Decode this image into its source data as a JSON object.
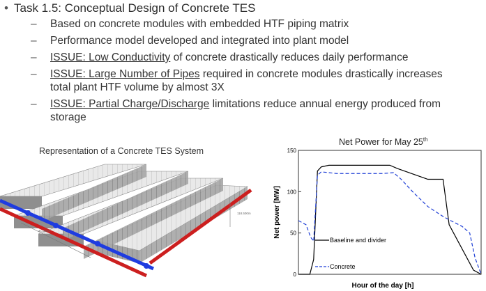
{
  "slide": {
    "title": "Task 1.5: Conceptual Design of Concrete TES",
    "bullets": [
      {
        "lines": [
          "Based on concrete modules with embedded HTF piping matrix"
        ]
      },
      {
        "lines": [
          "Performance model developed and integrated into plant model"
        ]
      },
      {
        "underlined": "ISSUE: Low Conductivity",
        "rest": " of concrete drastically reduces daily performance"
      },
      {
        "underlined": "ISSUE: Large Number of Pipes",
        "rest": " required in concrete modules drastically increases",
        "line2": "total plant HTF volume by almost 3X"
      },
      {
        "underlined": "ISSUE: Partial Charge/Discharge",
        "rest": " limitations reduce annual energy produced from",
        "line2": "storage"
      }
    ]
  },
  "figure": {
    "caption": "Representation of a Concrete TES System",
    "dim_labels": [
      "118.500m",
      "4x.000m"
    ]
  },
  "chart_data": {
    "type": "line",
    "title": "Net Power for May 25",
    "title_sup": "th",
    "xlabel": "Hour of the day  [h]",
    "ylabel": "Net power  [MW]",
    "ylim": [
      0,
      150
    ],
    "xlim": [
      0,
      24
    ],
    "yticks": [
      0,
      50,
      100,
      150
    ],
    "series": [
      {
        "name": "Baseline and divider",
        "color": "#000000",
        "dash": "solid",
        "x": [
          0,
          1.5,
          2.0,
          2.5,
          3.0,
          4.0,
          12.0,
          13.0,
          17.0,
          19.0,
          19.8,
          23.0,
          24.0
        ],
        "y": [
          0,
          0,
          18,
          125,
          130,
          132,
          132,
          128,
          115,
          115,
          60,
          5,
          0
        ]
      },
      {
        "name": "Concrete",
        "color": "#1f3fd6",
        "dash": "dashed",
        "x": [
          0,
          1.0,
          1.6,
          2.0,
          2.5,
          3.0,
          5.0,
          11.0,
          12.5,
          13.5,
          15.0,
          17.0,
          19.0,
          20.0,
          21.5,
          22.5,
          23.2,
          24.0
        ],
        "y": [
          65,
          60,
          45,
          40,
          120,
          124,
          122,
          122,
          123,
          115,
          100,
          82,
          70,
          65,
          58,
          50,
          20,
          0
        ]
      }
    ]
  },
  "colors": {
    "pipe_red": "#cc1f1f",
    "pipe_blue": "#1f3ce0",
    "module_top": "#e6e6e6",
    "module_side": "#9a9a9a"
  }
}
